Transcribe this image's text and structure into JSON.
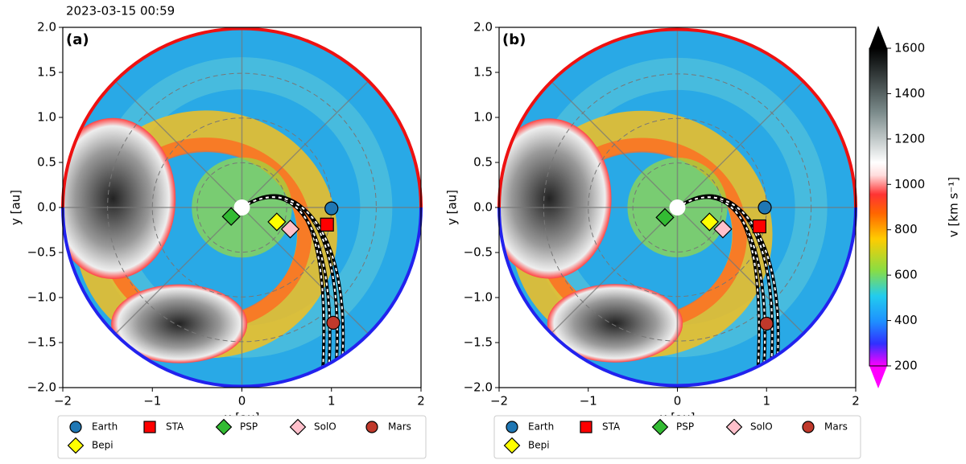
{
  "timestamp": "2023-03-15 00:59",
  "colorbar": {
    "label": "v  [km s⁻¹]",
    "lim": [
      200,
      1600
    ],
    "ticks": [
      200,
      400,
      600,
      800,
      1000,
      1200,
      1400,
      1600
    ]
  },
  "chart_data": [
    {
      "type": "scatter",
      "panel_label": "(a)",
      "xlabel": "x [au]",
      "ylabel": "y [au]",
      "xlim": [
        -2,
        2
      ],
      "ylim": [
        -2,
        2
      ],
      "xticks": [
        {
          "value": -2,
          "label": "−2"
        },
        {
          "value": -1,
          "label": "−1"
        },
        0,
        1,
        2
      ],
      "yticks": [
        {
          "value": -2,
          "label": "−2.0"
        },
        {
          "value": -1.5,
          "label": "−1.5"
        },
        {
          "value": -1,
          "label": "−1.0"
        },
        {
          "value": -0.5,
          "label": "−0.5"
        },
        {
          "value": 0,
          "label": "0.0"
        },
        {
          "value": 0.5,
          "label": "0.5"
        },
        {
          "value": 1,
          "label": "1.0"
        },
        {
          "value": 1.5,
          "label": "1.5"
        },
        {
          "value": 2,
          "label": "2.0"
        }
      ],
      "series": [
        {
          "name": "Earth",
          "color": "#1f77b4",
          "marker": "circle",
          "x": [
            1.0
          ],
          "y": [
            -0.01
          ]
        },
        {
          "name": "STA",
          "color": "#ff0000",
          "marker": "square",
          "x": [
            0.95
          ],
          "y": [
            -0.19
          ]
        },
        {
          "name": "PSP",
          "color": "#33bb33",
          "marker": "diamond",
          "x": [
            -0.12
          ],
          "y": [
            -0.1
          ]
        },
        {
          "name": "SolO",
          "color": "#ffc0cb",
          "marker": "diamond",
          "x": [
            0.54
          ],
          "y": [
            -0.24
          ]
        },
        {
          "name": "Mars",
          "color": "#c0392b",
          "marker": "circle",
          "x": [
            1.02
          ],
          "y": [
            -1.28
          ]
        },
        {
          "name": "Bepi",
          "color": "#ffff00",
          "marker": "diamond",
          "x": [
            0.39
          ],
          "y": [
            -0.16
          ]
        }
      ]
    },
    {
      "type": "scatter",
      "panel_label": "(b)",
      "xlabel": "x [au]",
      "ylabel": "y [au]",
      "xlim": [
        -2,
        2
      ],
      "ylim": [
        -2,
        2
      ],
      "xticks": [
        {
          "value": -2,
          "label": "−2"
        },
        {
          "value": -1,
          "label": "−1"
        },
        0,
        1,
        2
      ],
      "yticks": [
        {
          "value": -2,
          "label": "−2.0"
        },
        {
          "value": -1.5,
          "label": "−1.5"
        },
        {
          "value": -1,
          "label": "−1.0"
        },
        {
          "value": -0.5,
          "label": "−0.5"
        },
        {
          "value": 0,
          "label": "0.0"
        },
        {
          "value": 0.5,
          "label": "0.5"
        },
        {
          "value": 1,
          "label": "1.0"
        },
        {
          "value": 1.5,
          "label": "1.5"
        },
        {
          "value": 2,
          "label": "2.0"
        }
      ],
      "series": [
        {
          "name": "Earth",
          "color": "#1f77b4",
          "marker": "circle",
          "x": [
            0.98
          ],
          "y": [
            0.0
          ]
        },
        {
          "name": "STA",
          "color": "#ff0000",
          "marker": "square",
          "x": [
            0.92
          ],
          "y": [
            -0.21
          ]
        },
        {
          "name": "PSP",
          "color": "#33bb33",
          "marker": "diamond",
          "x": [
            -0.14
          ],
          "y": [
            -0.11
          ]
        },
        {
          "name": "SolO",
          "color": "#ffc0cb",
          "marker": "diamond",
          "x": [
            0.51
          ],
          "y": [
            -0.24
          ]
        },
        {
          "name": "Mars",
          "color": "#c0392b",
          "marker": "circle",
          "x": [
            1.0
          ],
          "y": [
            -1.29
          ]
        },
        {
          "name": "Bepi",
          "color": "#ffff00",
          "marker": "diamond",
          "x": [
            0.36
          ],
          "y": [
            -0.16
          ]
        }
      ]
    }
  ]
}
